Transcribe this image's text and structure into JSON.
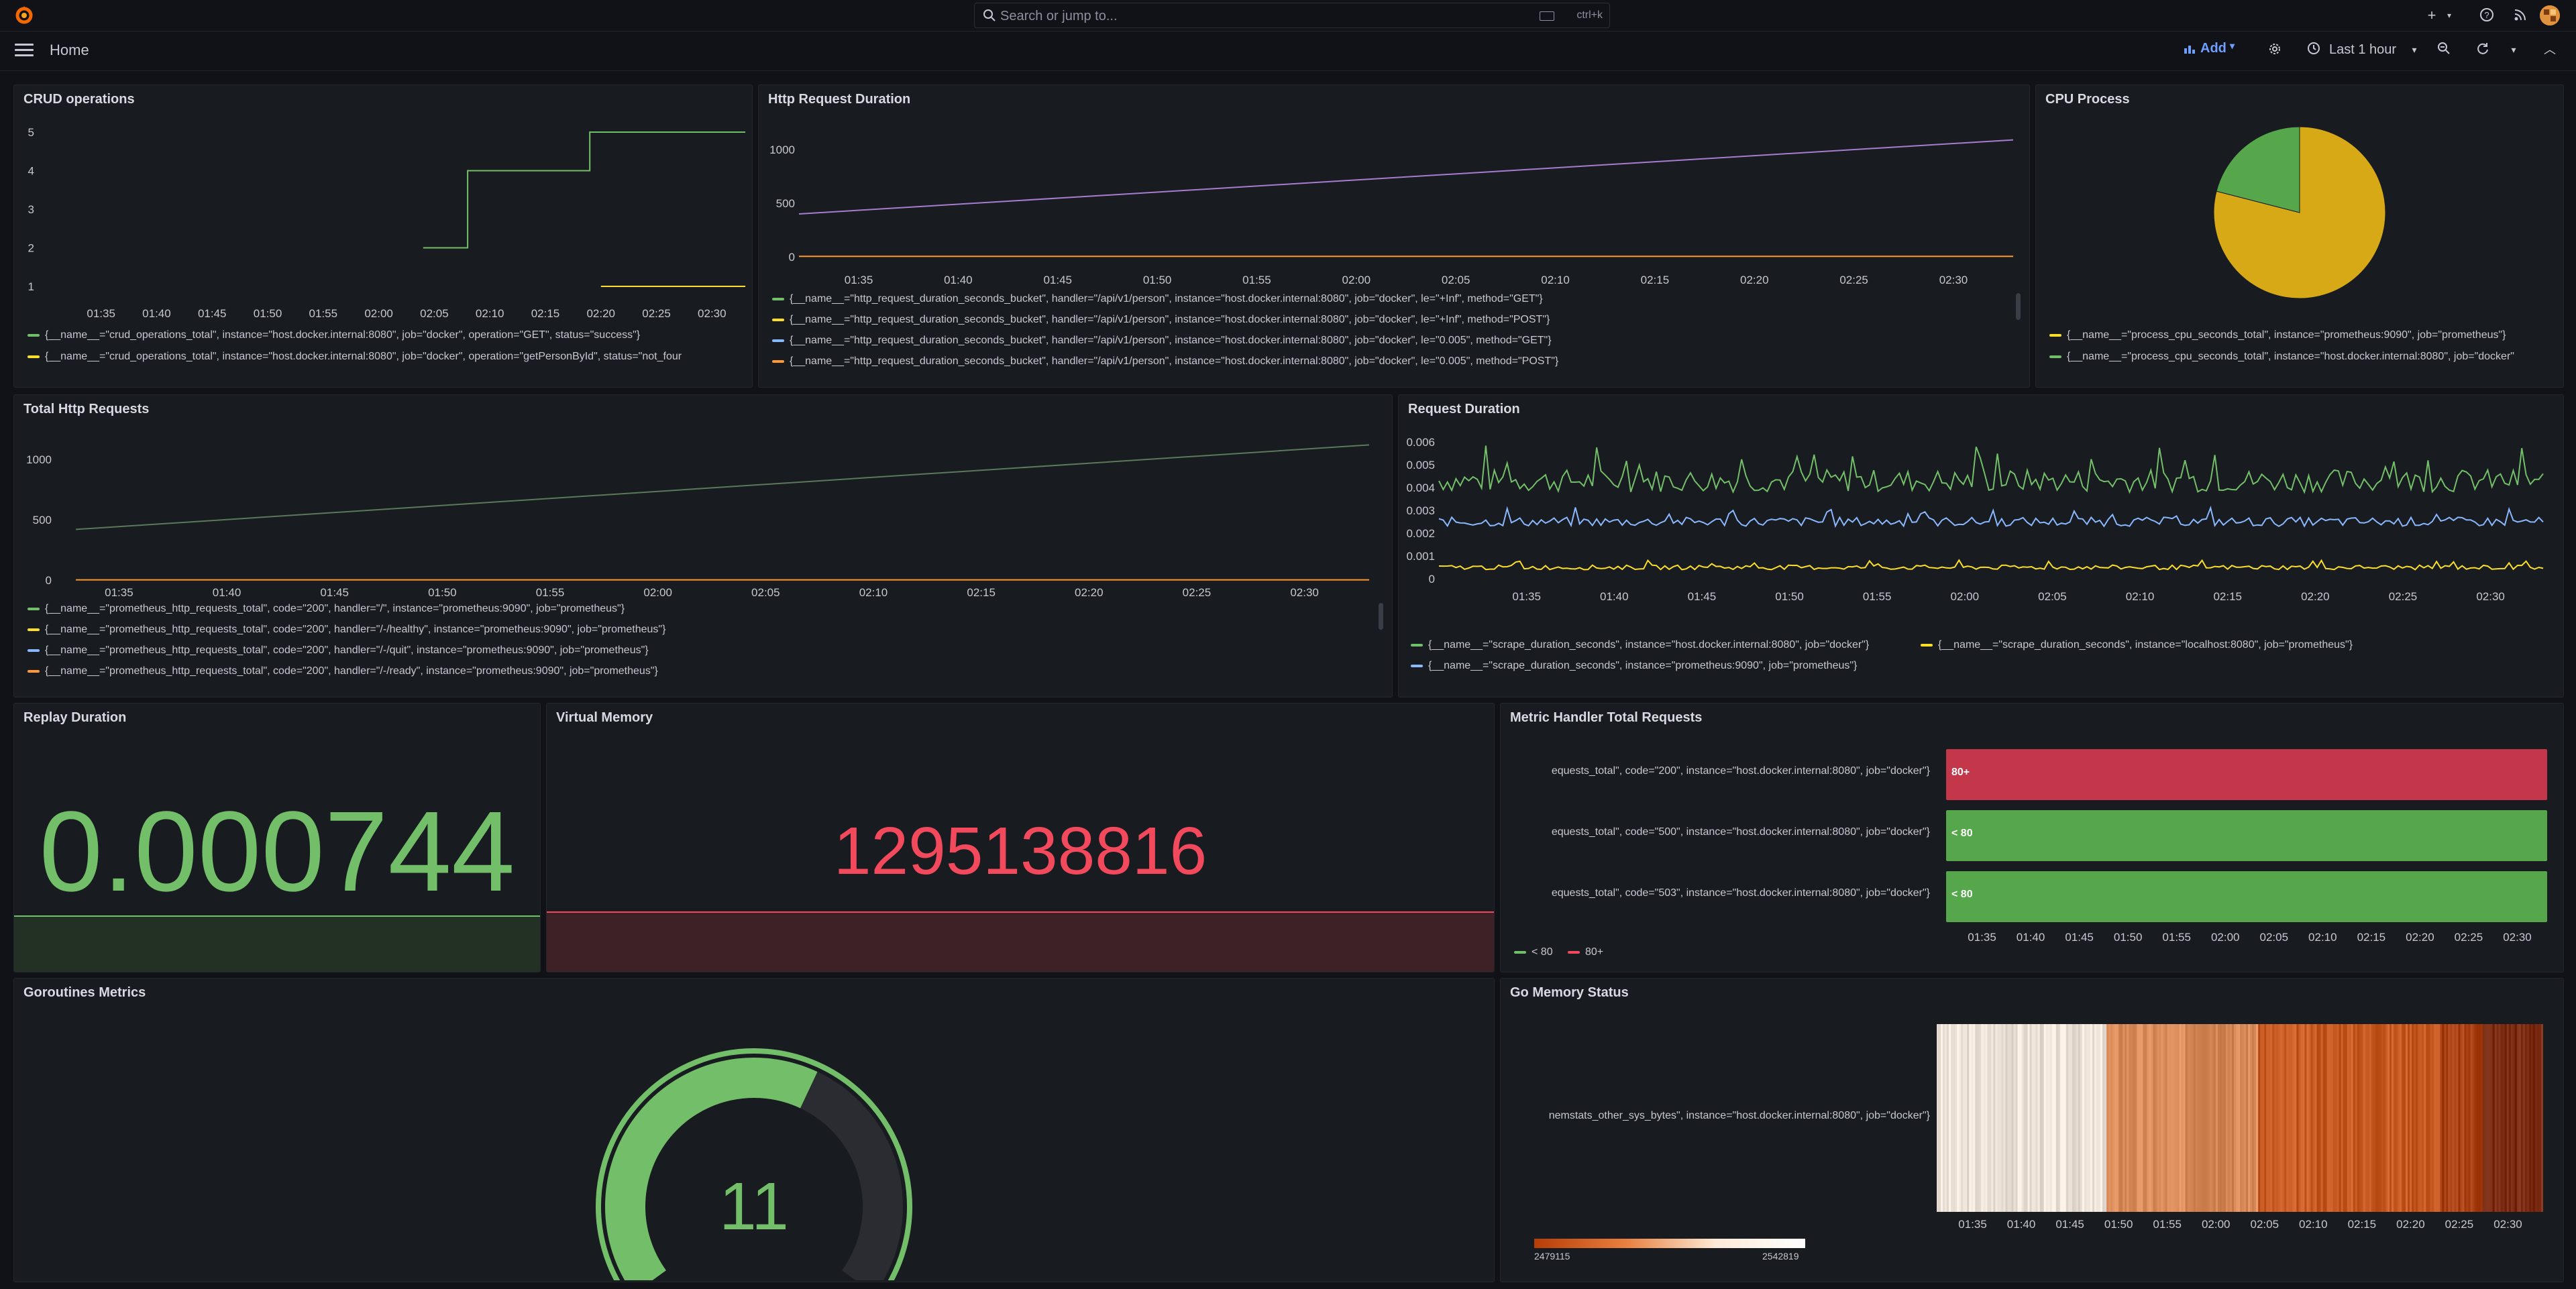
{
  "topbar": {
    "search_placeholder": "Search or jump to...",
    "search_shortcut": "ctrl+k",
    "icons": [
      "grafana-logo",
      "search-icon",
      "plus-icon",
      "help-icon",
      "news-icon",
      "avatar"
    ]
  },
  "navbar": {
    "breadcrumb": "Home",
    "add_label": "Add",
    "time_range": "Last 1 hour"
  },
  "time_ticks": [
    "01:35",
    "01:40",
    "01:45",
    "01:50",
    "01:55",
    "02:00",
    "02:05",
    "02:10",
    "02:15",
    "02:20",
    "02:25",
    "02:30"
  ],
  "panels": {
    "crud": {
      "title": "CRUD operations",
      "legend": [
        {
          "color": "#73bf69",
          "label": "{__name__=\"crud_operations_total\", instance=\"host.docker.internal:8080\", job=\"docker\", operation=\"GET\", status=\"success\"}"
        },
        {
          "color": "#fade2a",
          "label": "{__name__=\"crud_operations_total\", instance=\"host.docker.internal:8080\", job=\"docker\", operation=\"getPersonById\", status=\"not_four"
        }
      ]
    },
    "http_duration": {
      "title": "Http Request Duration",
      "legend": [
        {
          "color": "#73bf69",
          "label": "{__name__=\"http_request_duration_seconds_bucket\", handler=\"/api/v1/person\", instance=\"host.docker.internal:8080\", job=\"docker\", le=\"+Inf\", method=\"GET\"}"
        },
        {
          "color": "#fade2a",
          "label": "{__name__=\"http_request_duration_seconds_bucket\", handler=\"/api/v1/person\", instance=\"host.docker.internal:8080\", job=\"docker\", le=\"+Inf\", method=\"POST\"}"
        },
        {
          "color": "#8ab8ff",
          "label": "{__name__=\"http_request_duration_seconds_bucket\", handler=\"/api/v1/person\", instance=\"host.docker.internal:8080\", job=\"docker\", le=\"0.005\", method=\"GET\"}"
        },
        {
          "color": "#ff9830",
          "label": "{__name__=\"http_request_duration_seconds_bucket\", handler=\"/api/v1/person\", instance=\"host.docker.internal:8080\", job=\"docker\", le=\"0.005\", method=\"POST\"}"
        }
      ]
    },
    "cpu": {
      "title": "CPU Process",
      "legend": [
        {
          "color": "#fade2a",
          "label": "{__name__=\"process_cpu_seconds_total\", instance=\"prometheus:9090\", job=\"prometheus\"}"
        },
        {
          "color": "#73bf69",
          "label": "{__name__=\"process_cpu_seconds_total\", instance=\"host.docker.internal:8080\", job=\"docker\""
        }
      ]
    },
    "total_http": {
      "title": "Total Http Requests",
      "legend": [
        {
          "color": "#73bf69",
          "label": "{__name__=\"prometheus_http_requests_total\", code=\"200\", handler=\"/\", instance=\"prometheus:9090\", job=\"prometheus\"}"
        },
        {
          "color": "#fade2a",
          "label": "{__name__=\"prometheus_http_requests_total\", code=\"200\", handler=\"/-/healthy\", instance=\"prometheus:9090\", job=\"prometheus\"}"
        },
        {
          "color": "#8ab8ff",
          "label": "{__name__=\"prometheus_http_requests_total\", code=\"200\", handler=\"/-/quit\", instance=\"prometheus:9090\", job=\"prometheus\"}"
        },
        {
          "color": "#ff9830",
          "label": "{__name__=\"prometheus_http_requests_total\", code=\"200\", handler=\"/-/ready\", instance=\"prometheus:9090\", job=\"prometheus\"}"
        }
      ]
    },
    "req_duration": {
      "title": "Request Duration",
      "legend": [
        {
          "color": "#73bf69",
          "label": "{__name__=\"scrape_duration_seconds\", instance=\"host.docker.internal:8080\", job=\"docker\"}"
        },
        {
          "color": "#fade2a",
          "label": "{__name__=\"scrape_duration_seconds\", instance=\"localhost:8080\", job=\"prometheus\"}"
        },
        {
          "color": "#8ab8ff",
          "label": "{__name__=\"scrape_duration_seconds\", instance=\"prometheus:9090\", job=\"prometheus\"}"
        }
      ]
    },
    "replay": {
      "title": "Replay Duration",
      "value": "0.000744",
      "color": "#73bf69"
    },
    "vmem": {
      "title": "Virtual Memory",
      "value": "1295138816",
      "color": "#f2495c"
    },
    "metric_handler": {
      "title": "Metric Handler Total Requests",
      "rows": [
        {
          "label": "equests_total\", code=\"200\", instance=\"host.docker.internal:8080\", job=\"docker\"}",
          "text": "80+",
          "color": "#c4374b"
        },
        {
          "label": "equests_total\", code=\"500\", instance=\"host.docker.internal:8080\", job=\"docker\"}",
          "text": "< 80",
          "color": "#56a64b"
        },
        {
          "label": "equests_total\", code=\"503\", instance=\"host.docker.internal:8080\", job=\"docker\"}",
          "text": "< 80",
          "color": "#56a64b"
        }
      ],
      "legend": [
        {
          "color": "#73bf69",
          "label": "< 80"
        },
        {
          "color": "#f2495c",
          "label": "80+"
        }
      ]
    },
    "goroutines": {
      "title": "Goroutines Metrics",
      "value": "11",
      "color": "#73bf69",
      "fill_fraction": 0.6
    },
    "go_memory": {
      "title": "Go Memory Status",
      "row_label": "nemstats_other_sys_bytes\", instance=\"host.docker.internal:8080\", job=\"docker\"}",
      "scale_min": "2479115",
      "scale_max": "2542819"
    }
  },
  "chart_data": [
    {
      "type": "line",
      "title": "CRUD operations",
      "x": [
        "01:35",
        "01:40",
        "01:45",
        "01:50",
        "01:55",
        "02:00",
        "02:05",
        "02:10",
        "02:15",
        "02:20",
        "02:25",
        "02:30"
      ],
      "ylim": [
        1,
        5
      ],
      "yticks": [
        1,
        2,
        3,
        4,
        5
      ],
      "series": [
        {
          "name": "{__name__=\"crud_operations_total\", instance=\"host.docker.internal:8080\", job=\"docker\", operation=\"GET\", status=\"success\"}",
          "color": "#73bf69",
          "points": [
            [
              "02:04",
              2
            ],
            [
              "02:08",
              2
            ],
            [
              "02:08",
              4
            ],
            [
              "02:19",
              4
            ],
            [
              "02:19",
              5
            ],
            [
              "02:33",
              5
            ]
          ]
        },
        {
          "name": "{__name__=\"crud_operations_total\", instance=\"host.docker.internal:8080\", job=\"docker\", operation=\"getPersonById\", status=\"not_four",
          "color": "#fade2a",
          "points": [
            [
              "02:20",
              1
            ],
            [
              "02:33",
              1
            ]
          ]
        }
      ]
    },
    {
      "type": "line",
      "title": "Http Request Duration",
      "x": [
        "01:35",
        "01:40",
        "01:45",
        "01:50",
        "01:55",
        "02:00",
        "02:05",
        "02:10",
        "02:15",
        "02:20",
        "02:25",
        "02:30"
      ],
      "ylim": [
        0,
        1100
      ],
      "yticks": [
        0,
        500,
        1000
      ],
      "series": [
        {
          "name": "{__name__=\"http_request_duration_seconds_bucket\", handler=\"/api/v1/person\", instance=\"host.docker.internal:8080\", job=\"docker\", le=\"+Inf\", method=\"GET\"}",
          "color": "#a77bd0",
          "points": [
            [
              "01:32",
              400
            ],
            [
              "02:33",
              1090
            ]
          ]
        },
        {
          "name": "{__name__=\"http_request_duration_seconds_bucket\", handler=\"/api/v1/person\", instance=\"host.docker.internal:8080\", job=\"docker\", le=\"0.005\", method=\"POST\"}",
          "color": "#ff9830",
          "points": [
            [
              "01:32",
              5
            ],
            [
              "02:33",
              5
            ]
          ]
        }
      ]
    },
    {
      "type": "pie",
      "title": "CPU Process",
      "slices": [
        {
          "label": "prometheus:9090",
          "value": 0.79,
          "color": "#d8a917"
        },
        {
          "label": "host.docker.internal:8080",
          "value": 0.21,
          "color": "#56a64b"
        }
      ]
    },
    {
      "type": "line",
      "title": "Total Http Requests",
      "x": [
        "01:35",
        "01:40",
        "01:45",
        "01:50",
        "01:55",
        "02:00",
        "02:05",
        "02:10",
        "02:15",
        "02:20",
        "02:25",
        "02:30"
      ],
      "ylim": [
        0,
        1200
      ],
      "yticks": [
        0,
        500,
        1000
      ],
      "series": [
        {
          "name": "{__name__=\"prometheus_http_requests_total\", code=\"200\", handler=\"/\", instance=\"prometheus:9090\", job=\"prometheus\"}",
          "color": "#5a7a5a",
          "points": [
            [
              "01:33",
              420
            ],
            [
              "02:33",
              1120
            ]
          ]
        },
        {
          "name": "{__name__=\"prometheus_http_requests_total\", code=\"200\", handler=\"/-/ready\", instance=\"prometheus:9090\", job=\"prometheus\"}",
          "color": "#ff9830",
          "points": [
            [
              "01:33",
              2
            ],
            [
              "02:33",
              2
            ]
          ]
        }
      ]
    },
    {
      "type": "line",
      "title": "Request Duration",
      "x": [
        "01:35",
        "01:40",
        "01:45",
        "01:50",
        "01:55",
        "02:00",
        "02:05",
        "02:10",
        "02:15",
        "02:20",
        "02:25",
        "02:30"
      ],
      "ylim": [
        0,
        0.006
      ],
      "yticks": [
        0,
        0.001,
        0.002,
        0.003,
        0.004,
        0.005,
        0.006
      ],
      "series": [
        {
          "name": "host.docker.internal:8080",
          "color": "#73bf69",
          "base": 0.0043,
          "noise": 0.0005
        },
        {
          "name": "prometheus:9090",
          "color": "#8ab8ff",
          "base": 0.0025,
          "noise": 0.0002
        },
        {
          "name": "localhost:8080",
          "color": "#fade2a",
          "base": 0.0005,
          "noise": 0.0001
        }
      ]
    },
    {
      "type": "gauge",
      "title": "Goroutines Metrics",
      "value": 11
    }
  ]
}
